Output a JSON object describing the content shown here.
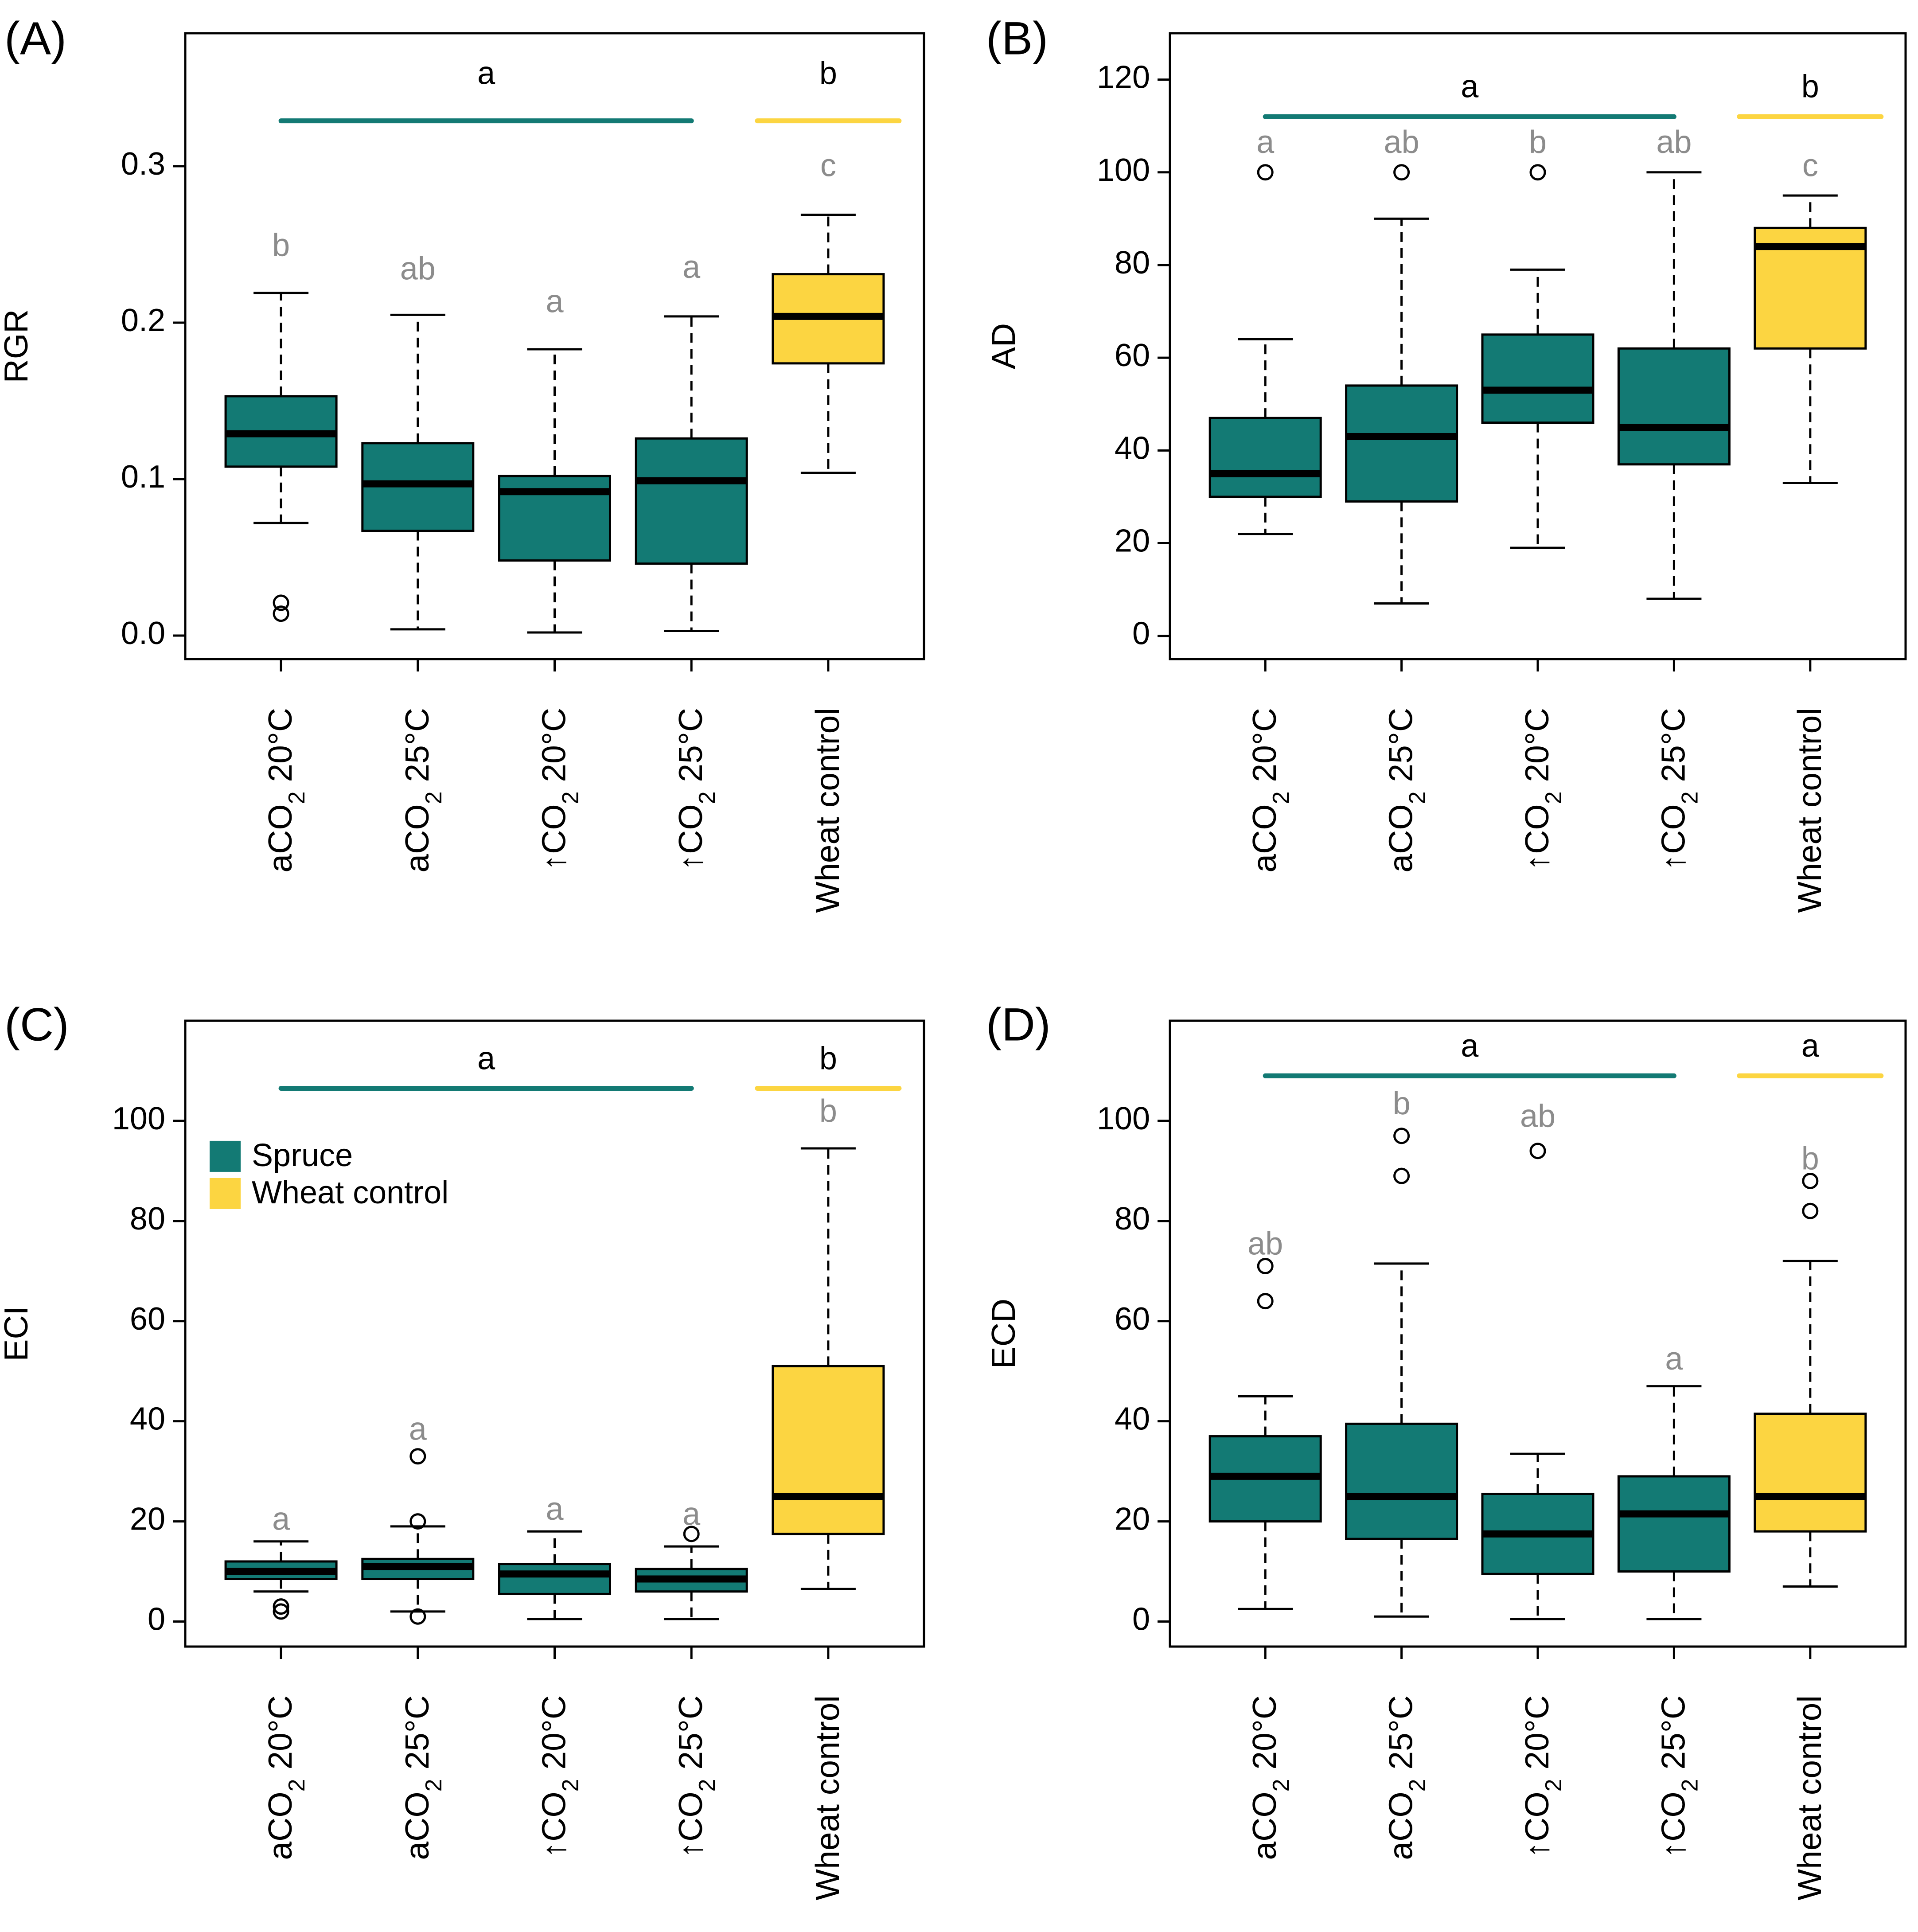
{
  "figure": {
    "categories": [
      {
        "prefix": "a",
        "main": "CO",
        "sub": "2",
        "suffix": " 20°C"
      },
      {
        "prefix": "a",
        "main": "CO",
        "sub": "2",
        "suffix": " 25°C"
      },
      {
        "prefix": "↑",
        "main": "CO",
        "sub": "2",
        "suffix": " 20°C"
      },
      {
        "prefix": "↑",
        "main": "CO",
        "sub": "2",
        "suffix": " 25°C"
      },
      {
        "prefix": "",
        "main": "Wheat control",
        "sub": "",
        "suffix": ""
      }
    ],
    "colors": {
      "spruce": "#137a74",
      "wheat": "#fcd541",
      "sig_letter": "#8c8c8c",
      "axis": "#000000"
    },
    "legend": {
      "entries": [
        {
          "label": "Spruce",
          "color": "#137a74"
        },
        {
          "label": "Wheat control",
          "color": "#fcd541"
        }
      ]
    }
  },
  "chart_data": [
    {
      "panel": "(A)",
      "type": "box",
      "ylabel": "RGR",
      "ylim": [
        -0.015,
        0.385
      ],
      "yticks": [
        0.0,
        0.1,
        0.2,
        0.3
      ],
      "ytick_labels": [
        "0.0",
        "0.1",
        "0.2",
        "0.3"
      ],
      "boxes": [
        {
          "whisker_low": 0.072,
          "q1": 0.108,
          "median": 0.129,
          "q3": 0.153,
          "whisker_high": 0.219,
          "outliers": [
            0.014,
            0.021
          ],
          "letter": "b",
          "color": "spruce"
        },
        {
          "whisker_low": 0.004,
          "q1": 0.067,
          "median": 0.097,
          "q3": 0.123,
          "whisker_high": 0.205,
          "outliers": [],
          "letter": "ab",
          "color": "spruce"
        },
        {
          "whisker_low": 0.002,
          "q1": 0.048,
          "median": 0.092,
          "q3": 0.102,
          "whisker_high": 0.183,
          "outliers": [],
          "letter": "a",
          "color": "spruce"
        },
        {
          "whisker_low": 0.003,
          "q1": 0.046,
          "median": 0.099,
          "q3": 0.126,
          "whisker_high": 0.204,
          "outliers": [],
          "letter": "a",
          "color": "spruce"
        },
        {
          "whisker_low": 0.104,
          "q1": 0.174,
          "median": 0.204,
          "q3": 0.231,
          "whisker_high": 0.269,
          "outliers": [],
          "letter": "c",
          "color": "wheat"
        }
      ],
      "group_labels": [
        {
          "label": "a",
          "from": 0,
          "to": 3,
          "color": "spruce"
        },
        {
          "label": "b",
          "from": 4,
          "to": 4,
          "color": "wheat"
        }
      ],
      "group_line_y": 0.329,
      "group_label_y": 0.358,
      "letter_y": [
        0.248,
        0.233,
        0.212,
        0.234,
        0.299
      ]
    },
    {
      "panel": "(B)",
      "type": "box",
      "ylabel": "AD",
      "ylim": [
        -5,
        130
      ],
      "yticks": [
        0,
        20,
        40,
        60,
        80,
        100,
        120
      ],
      "ytick_labels": [
        "0",
        "20",
        "40",
        "60",
        "80",
        "100",
        "120"
      ],
      "boxes": [
        {
          "whisker_low": 22,
          "q1": 30,
          "median": 35,
          "q3": 47,
          "whisker_high": 64,
          "outliers": [
            100
          ],
          "letter": "a",
          "color": "spruce"
        },
        {
          "whisker_low": 7,
          "q1": 29,
          "median": 43,
          "q3": 54,
          "whisker_high": 90,
          "outliers": [
            100
          ],
          "letter": "ab",
          "color": "spruce"
        },
        {
          "whisker_low": 19,
          "q1": 46,
          "median": 53,
          "q3": 65,
          "whisker_high": 79,
          "outliers": [
            100
          ],
          "letter": "b",
          "color": "spruce"
        },
        {
          "whisker_low": 8,
          "q1": 37,
          "median": 45,
          "q3": 62,
          "whisker_high": 100,
          "outliers": [],
          "letter": "ab",
          "color": "spruce"
        },
        {
          "whisker_low": 33,
          "q1": 62,
          "median": 84,
          "q3": 88,
          "whisker_high": 95,
          "outliers": [],
          "letter": "c",
          "color": "wheat"
        }
      ],
      "group_labels": [
        {
          "label": "a",
          "from": 0,
          "to": 3,
          "color": "spruce"
        },
        {
          "label": "b",
          "from": 4,
          "to": 4,
          "color": "wheat"
        }
      ],
      "group_line_y": 112,
      "group_label_y": 118,
      "letter_y": [
        106,
        106,
        106,
        106,
        101
      ]
    },
    {
      "panel": "(C)",
      "type": "box",
      "ylabel": "ECI",
      "ylim": [
        -5,
        120
      ],
      "yticks": [
        0,
        20,
        40,
        60,
        80,
        100
      ],
      "ytick_labels": [
        "0",
        "20",
        "40",
        "60",
        "80",
        "100"
      ],
      "boxes": [
        {
          "whisker_low": 6,
          "q1": 8.5,
          "median": 10,
          "q3": 12,
          "whisker_high": 16,
          "outliers": [
            2,
            3
          ],
          "letter": "a",
          "color": "spruce"
        },
        {
          "whisker_low": 2,
          "q1": 8.5,
          "median": 11,
          "q3": 12.5,
          "whisker_high": 19,
          "outliers": [
            1,
            20,
            33
          ],
          "letter": "a",
          "color": "spruce"
        },
        {
          "whisker_low": 0.5,
          "q1": 5.5,
          "median": 9.5,
          "q3": 11.5,
          "whisker_high": 18,
          "outliers": [],
          "letter": "a",
          "color": "spruce"
        },
        {
          "whisker_low": 0.5,
          "q1": 6,
          "median": 8.5,
          "q3": 10.5,
          "whisker_high": 15,
          "outliers": [
            17.5
          ],
          "letter": "a",
          "color": "spruce"
        },
        {
          "whisker_low": 6.5,
          "q1": 17.5,
          "median": 25,
          "q3": 51,
          "whisker_high": 94.5,
          "outliers": [],
          "letter": "b",
          "color": "wheat"
        }
      ],
      "group_labels": [
        {
          "label": "a",
          "from": 0,
          "to": 3,
          "color": "spruce"
        },
        {
          "label": "b",
          "from": 4,
          "to": 4,
          "color": "wheat"
        }
      ],
      "group_line_y": 106.5,
      "group_label_y": 112,
      "letter_y": [
        20,
        38,
        22,
        21,
        101.5
      ],
      "legend": true
    },
    {
      "panel": "(D)",
      "type": "box",
      "ylabel": "ECD",
      "ylim": [
        -5,
        120
      ],
      "yticks": [
        0,
        20,
        40,
        60,
        80,
        100
      ],
      "ytick_labels": [
        "0",
        "20",
        "40",
        "60",
        "80",
        "100"
      ],
      "boxes": [
        {
          "whisker_low": 2.5,
          "q1": 20,
          "median": 29,
          "q3": 37,
          "whisker_high": 45,
          "outliers": [
            64,
            71
          ],
          "letter": "ab",
          "color": "spruce"
        },
        {
          "whisker_low": 1,
          "q1": 16.5,
          "median": 25,
          "q3": 39.5,
          "whisker_high": 71.5,
          "outliers": [
            89,
            97
          ],
          "letter": "b",
          "color": "spruce"
        },
        {
          "whisker_low": 0.5,
          "q1": 9.5,
          "median": 17.5,
          "q3": 25.5,
          "whisker_high": 33.5,
          "outliers": [
            94
          ],
          "letter": "ab",
          "color": "spruce"
        },
        {
          "whisker_low": 0.5,
          "q1": 10,
          "median": 21.5,
          "q3": 29,
          "whisker_high": 47,
          "outliers": [],
          "letter": "a",
          "color": "spruce"
        },
        {
          "whisker_low": 7,
          "q1": 18,
          "median": 25,
          "q3": 41.5,
          "whisker_high": 72,
          "outliers": [
            82,
            88
          ],
          "letter": "b",
          "color": "wheat"
        }
      ],
      "group_labels": [
        {
          "label": "a",
          "from": 0,
          "to": 3,
          "color": "spruce"
        },
        {
          "label": "a",
          "from": 4,
          "to": 4,
          "color": "wheat"
        }
      ],
      "group_line_y": 109,
      "group_label_y": 114.5,
      "letter_y": [
        75,
        103,
        100.5,
        52,
        92
      ]
    }
  ]
}
